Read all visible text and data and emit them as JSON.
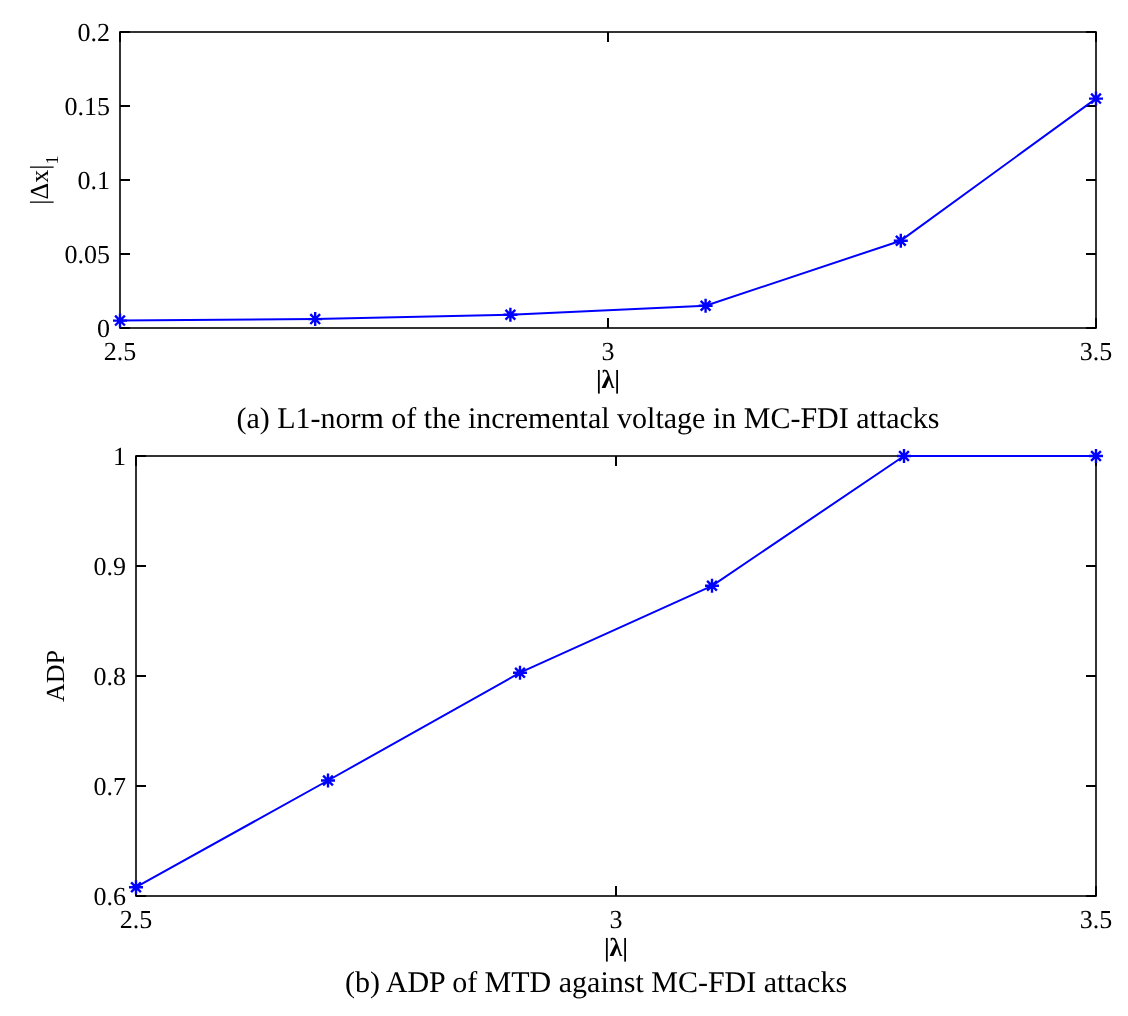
{
  "chart_data": [
    {
      "type": "line",
      "title": "(a)    L1-norm of the incremental voltage in MC-FDI attacks",
      "xlabel": "|λ|",
      "ylabel": "|Δx|$_{1}$",
      "x": [
        2.5,
        2.7,
        2.9,
        3.1,
        3.3,
        3.5
      ],
      "values": [
        0.005,
        0.006,
        0.009,
        0.015,
        0.059,
        0.155
      ],
      "color": "#0000ff",
      "xlim": [
        2.5,
        3.5
      ],
      "xticks": [
        2.5,
        3,
        3.5
      ],
      "ylim": [
        0,
        0.2
      ],
      "yticks": [
        0,
        0.05,
        0.1,
        0.15,
        0.2
      ],
      "marker": "cross",
      "line_style": "solid",
      "grid": false
    },
    {
      "type": "line",
      "title": "(b)    ADP of MTD against MC-FDI attacks",
      "xlabel": "|λ|",
      "ylabel": "ADP",
      "x": [
        2.5,
        2.7,
        2.9,
        3.1,
        3.3,
        3.5
      ],
      "values": [
        0.608,
        0.705,
        0.803,
        0.882,
        1.0,
        1.0
      ],
      "color": "#0000ff",
      "xlim": [
        2.5,
        3.5
      ],
      "xticks": [
        2.5,
        3,
        3.5
      ],
      "ylim": [
        0.6,
        1
      ],
      "yticks": [
        0.6,
        0.7,
        0.8,
        0.9,
        1
      ],
      "marker": "cross",
      "line_style": "solid",
      "grid": false
    }
  ]
}
